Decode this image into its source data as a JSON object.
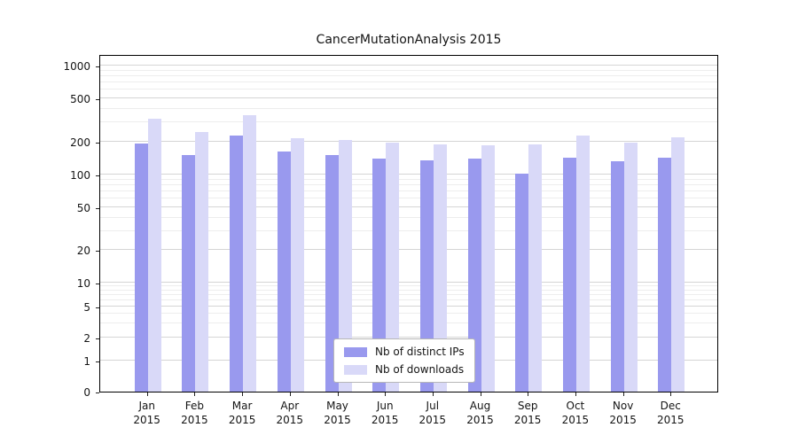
{
  "title": "CancerMutationAnalysis 2015",
  "chart_data": {
    "type": "bar",
    "title": "CancerMutationAnalysis 2015",
    "xlabel": "",
    "ylabel": "",
    "scale": "symlog",
    "grid": true,
    "legend_position": "lower center",
    "categories": [
      "Jan",
      "Feb",
      "Mar",
      "Apr",
      "May",
      "Jun",
      "Jul",
      "Aug",
      "Sep",
      "Oct",
      "Nov",
      "Dec"
    ],
    "year": "2015",
    "yticks": [
      0,
      1,
      2,
      5,
      10,
      20,
      50,
      100,
      200,
      500,
      1000
    ],
    "ylim": [
      0,
      1300
    ],
    "series": [
      {
        "name": "Nb of distinct IPs",
        "color": "#9999ee",
        "values": [
          192,
          152,
          228,
          163,
          152,
          141,
          134,
          139,
          102,
          144,
          132,
          143
        ]
      },
      {
        "name": "Nb of downloads",
        "color": "#d9d9f8",
        "values": [
          328,
          248,
          352,
          215,
          207,
          198,
          189,
          184,
          189,
          228,
          197,
          219
        ]
      }
    ]
  }
}
